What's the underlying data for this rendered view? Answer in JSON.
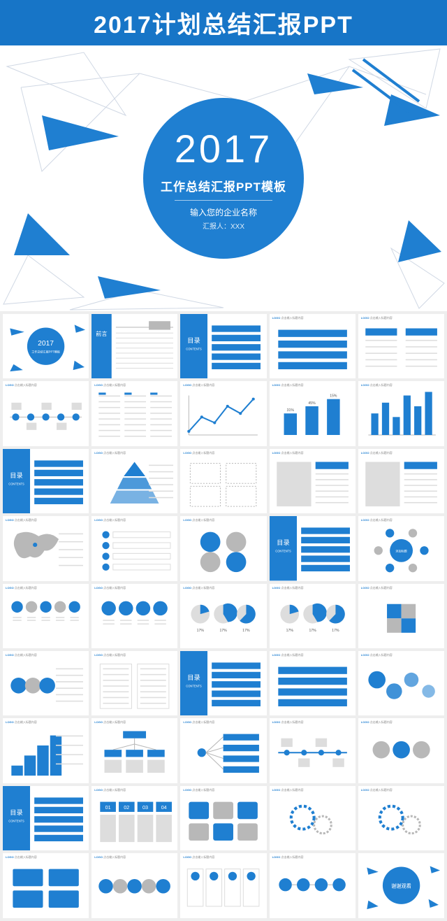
{
  "header": {
    "title": "2017计划总结汇报PPT"
  },
  "cover": {
    "year": "2017",
    "subtitle1": "工作总结汇报PPT模板",
    "subtitle2": "输入您的企业名称",
    "subtitle3": "汇报人：XXX",
    "accent": "#1f7fd1",
    "bg": "#ffffff"
  },
  "thumb_header": {
    "logo": "LOGO",
    "caption": "点击输入标题内容"
  },
  "toc": {
    "title": "目录",
    "sub": "CONTENTS"
  },
  "rows": 9,
  "cols": 5,
  "thumbs": [
    {
      "t": "cover"
    },
    {
      "t": "intro",
      "title": "前言"
    },
    {
      "t": "toc"
    },
    {
      "t": "bars4"
    },
    {
      "t": "flow2col"
    },
    {
      "t": "timeline"
    },
    {
      "t": "textcols"
    },
    {
      "t": "linechart"
    },
    {
      "t": "bar3"
    },
    {
      "t": "barchart"
    },
    {
      "t": "toc"
    },
    {
      "t": "pyramid"
    },
    {
      "t": "quad"
    },
    {
      "t": "split"
    },
    {
      "t": "split"
    },
    {
      "t": "map"
    },
    {
      "t": "list4"
    },
    {
      "t": "circles4"
    },
    {
      "t": "toc"
    },
    {
      "t": "hub",
      "label": "添加标题"
    },
    {
      "t": "icons5"
    },
    {
      "t": "icons4b"
    },
    {
      "t": "pies3"
    },
    {
      "t": "pies3b"
    },
    {
      "t": "puzzle"
    },
    {
      "t": "hex"
    },
    {
      "t": "cols2"
    },
    {
      "t": "toc"
    },
    {
      "t": "bars4"
    },
    {
      "t": "bubbles"
    },
    {
      "t": "steps"
    },
    {
      "t": "tree3"
    },
    {
      "t": "fan"
    },
    {
      "t": "timeline2"
    },
    {
      "t": "dots3"
    },
    {
      "t": "toc"
    },
    {
      "t": "num4"
    },
    {
      "t": "icons6"
    },
    {
      "t": "gears"
    },
    {
      "t": "gears2"
    },
    {
      "t": "grid4"
    },
    {
      "t": "circles5"
    },
    {
      "t": "cards4"
    },
    {
      "t": "flow4"
    },
    {
      "t": "end",
      "label": "谢谢观看"
    }
  ]
}
